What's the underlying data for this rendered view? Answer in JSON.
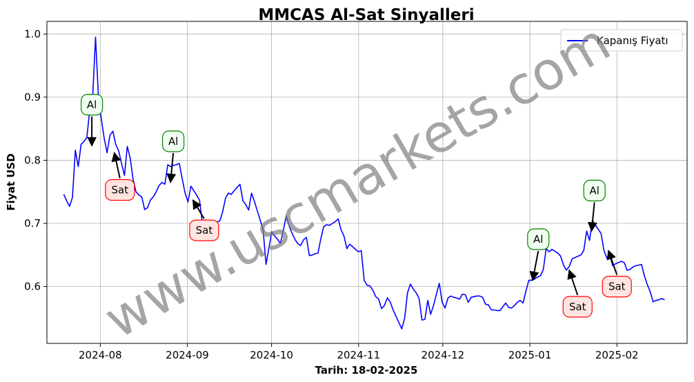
{
  "chart_data": {
    "type": "line",
    "title": "MMCAS Al-Sat Sinyalleri",
    "xlabel": "Tarih: 18-02-2025",
    "ylabel": "Fiyat USD",
    "x_start": "2024-07-19",
    "x_end": "2025-02-18",
    "xlim": [
      "2024-07-13",
      "2025-02-26"
    ],
    "ylim": [
      0.51,
      1.02
    ],
    "x_ticks": [
      "2024-08",
      "2024-09",
      "2024-10",
      "2024-11",
      "2024-12",
      "2025-01",
      "2025-02"
    ],
    "y_ticks": [
      0.6,
      0.7,
      0.8,
      0.9,
      1.0
    ],
    "grid": true,
    "legend_position": "top-right",
    "series": [
      {
        "name": "Kapanış Fiyatı",
        "color": "#0000ff",
        "values": [
          0.746,
          0.736,
          0.727,
          0.741,
          0.816,
          0.79,
          0.825,
          0.83,
          0.836,
          0.88,
          0.9,
          0.995,
          0.9,
          0.865,
          0.835,
          0.812,
          0.84,
          0.846,
          0.825,
          0.815,
          0.795,
          0.776,
          0.822,
          0.804,
          0.77,
          0.75,
          0.745,
          0.742,
          0.722,
          0.725,
          0.737,
          0.742,
          0.75,
          0.76,
          0.765,
          0.762,
          0.793,
          0.79,
          0.792,
          0.793,
          0.795,
          0.771,
          0.748,
          0.734,
          0.759,
          0.752,
          0.745,
          0.737,
          0.7,
          0.695,
          0.689,
          0.698,
          0.7,
          0.702,
          0.704,
          0.718,
          0.74,
          0.748,
          0.746,
          0.752,
          0.757,
          0.762,
          0.736,
          0.73,
          0.721,
          0.748,
          0.735,
          0.72,
          0.705,
          0.69,
          0.635,
          0.66,
          0.687,
          0.68,
          0.675,
          0.668,
          0.689,
          0.712,
          0.696,
          0.685,
          0.675,
          0.668,
          0.665,
          0.674,
          0.678,
          0.649,
          0.65,
          0.652,
          0.653,
          0.676,
          0.695,
          0.698,
          0.697,
          0.7,
          0.703,
          0.707,
          0.69,
          0.68,
          0.66,
          0.667,
          0.663,
          0.659,
          0.655,
          0.657,
          0.61,
          0.602,
          0.601,
          0.594,
          0.584,
          0.58,
          0.565,
          0.57,
          0.582,
          0.576,
          0.563,
          0.553,
          0.543,
          0.533,
          0.55,
          0.59,
          0.604,
          0.596,
          0.59,
          0.581,
          0.547,
          0.548,
          0.578,
          0.556,
          0.57,
          0.588,
          0.605,
          0.575,
          0.566,
          0.582,
          0.585,
          0.583,
          0.582,
          0.58,
          0.588,
          0.587,
          0.575,
          0.583,
          0.584,
          0.585,
          0.585,
          0.583,
          0.572,
          0.571,
          0.563,
          0.563,
          0.562,
          0.562,
          0.568,
          0.574,
          0.567,
          0.566,
          0.57,
          0.575,
          0.578,
          0.574,
          0.593,
          0.61,
          0.61,
          0.612,
          0.615,
          0.617,
          0.627,
          0.66,
          0.655,
          0.659,
          0.656,
          0.653,
          0.648,
          0.634,
          0.626,
          0.632,
          0.644,
          0.646,
          0.648,
          0.65,
          0.657,
          0.688,
          0.673,
          0.705,
          0.698,
          0.691,
          0.684,
          0.657,
          0.645,
          0.65,
          0.633,
          0.636,
          0.638,
          0.64,
          0.638,
          0.626,
          0.627,
          0.631,
          0.633,
          0.634,
          0.635,
          0.617,
          0.603,
          0.592,
          0.576,
          0.578,
          0.579,
          0.581,
          0.579
        ]
      }
    ],
    "annotations": [
      {
        "label": "Al",
        "type": "buy",
        "date": "2024-07-29",
        "y": 0.823,
        "text_date": "2024-07-29",
        "text_y": 0.888
      },
      {
        "label": "Sat",
        "type": "sell",
        "date": "2024-08-06",
        "y": 0.812,
        "text_date": "2024-08-08",
        "text_y": 0.753
      },
      {
        "label": "Al",
        "type": "buy",
        "date": "2024-08-26",
        "y": 0.765,
        "text_date": "2024-08-27",
        "text_y": 0.83
      },
      {
        "label": "Sat",
        "type": "sell",
        "date": "2024-09-03",
        "y": 0.737,
        "text_date": "2024-09-07",
        "text_y": 0.689
      },
      {
        "label": "Al",
        "type": "buy",
        "date": "2025-01-02",
        "y": 0.61,
        "text_date": "2025-01-04",
        "text_y": 0.675
      },
      {
        "label": "Sat",
        "type": "sell",
        "date": "2025-01-15",
        "y": 0.626,
        "text_date": "2025-01-18",
        "text_y": 0.568
      },
      {
        "label": "Al",
        "type": "buy",
        "date": "2025-01-23",
        "y": 0.688,
        "text_date": "2025-01-24",
        "text_y": 0.752
      },
      {
        "label": "Sat",
        "type": "sell",
        "date": "2025-01-29",
        "y": 0.657,
        "text_date": "2025-02-01",
        "text_y": 0.6
      }
    ],
    "colors": {
      "buy_edge": "#008000",
      "buy_fill": "#f0fff0",
      "sell_edge": "#ff0000",
      "sell_fill": "#ffe4e1"
    }
  },
  "watermark": "www.uscmarkets.com"
}
